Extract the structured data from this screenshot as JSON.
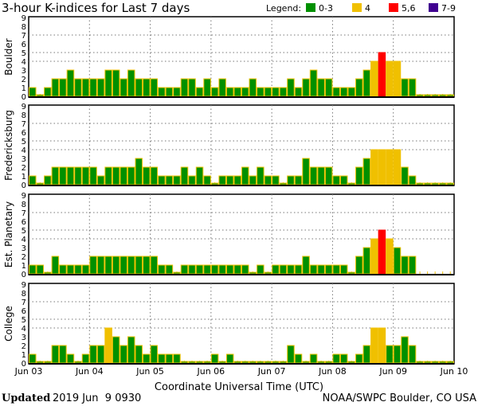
{
  "chart_data": {
    "type": "bar",
    "title": "3-hour K-indices for Last 7 days",
    "legend": {
      "label": "Legend:",
      "entries": [
        {
          "label": "0-3",
          "color": "#009000"
        },
        {
          "label": "4",
          "color": "#f0c000"
        },
        {
          "label": "5,6",
          "color": "#ff0000"
        },
        {
          "label": "7-9",
          "color": "#400090"
        }
      ],
      "placement": "top-right"
    },
    "xlabel": "Coordinate Universal Time (UTC)",
    "x_ticks": [
      "Jun 03",
      "Jun 04",
      "Jun 05",
      "Jun 06",
      "Jun 07",
      "Jun 08",
      "Jun 09",
      "Jun 10"
    ],
    "y_ticks": [
      "0",
      "1",
      "2",
      "3",
      "4",
      "5",
      "6",
      "7",
      "8",
      "9"
    ],
    "ylim": [
      0,
      9
    ],
    "bars_per_day": 8,
    "panels": [
      {
        "name": "Boulder",
        "values": [
          1,
          0,
          1,
          2,
          2,
          3,
          2,
          2,
          2,
          2,
          3,
          3,
          2,
          3,
          2,
          2,
          2,
          1,
          1,
          1,
          2,
          2,
          1,
          2,
          1,
          2,
          1,
          1,
          1,
          2,
          1,
          1,
          1,
          1,
          2,
          1,
          2,
          3,
          2,
          2,
          1,
          1,
          1,
          2,
          3,
          4,
          5,
          4,
          4,
          2,
          2,
          0,
          0,
          0,
          0,
          0
        ]
      },
      {
        "name": "Fredericksburg",
        "values": [
          1,
          0,
          1,
          2,
          2,
          2,
          2,
          2,
          2,
          1,
          2,
          2,
          2,
          2,
          3,
          2,
          2,
          1,
          1,
          1,
          2,
          1,
          2,
          1,
          0,
          1,
          1,
          1,
          2,
          1,
          2,
          1,
          1,
          0,
          1,
          1,
          3,
          2,
          2,
          2,
          1,
          1,
          0,
          2,
          3,
          4,
          4,
          4,
          4,
          2,
          1,
          0,
          0,
          0,
          0,
          0
        ]
      },
      {
        "name": "Est. Planetary",
        "values": [
          1,
          1,
          0,
          2,
          1,
          1,
          1,
          1,
          2,
          2,
          2,
          2,
          2,
          2,
          2,
          2,
          2,
          1,
          1,
          0,
          1,
          1,
          1,
          1,
          1,
          1,
          1,
          1,
          1,
          0,
          1,
          0,
          1,
          1,
          1,
          1,
          2,
          1,
          1,
          1,
          1,
          1,
          0,
          2,
          3,
          4,
          5,
          4,
          3,
          2,
          2,
          null,
          null,
          null,
          null,
          null
        ]
      },
      {
        "name": "College",
        "values": [
          1,
          0,
          0,
          2,
          2,
          1,
          0,
          1,
          2,
          2,
          4,
          3,
          2,
          3,
          2,
          1,
          2,
          1,
          1,
          1,
          0,
          0,
          0,
          0,
          1,
          0,
          1,
          0,
          0,
          0,
          0,
          0,
          0,
          0,
          2,
          1,
          0,
          1,
          0,
          0,
          1,
          1,
          0,
          1,
          2,
          4,
          4,
          2,
          2,
          3,
          2,
          0,
          0,
          0,
          0,
          0
        ]
      }
    ]
  },
  "footer": {
    "updated_label": "Updated",
    "updated_value": "2019 Jun  9 0930",
    "source": "NOAA/SWPC Boulder, CO USA"
  }
}
